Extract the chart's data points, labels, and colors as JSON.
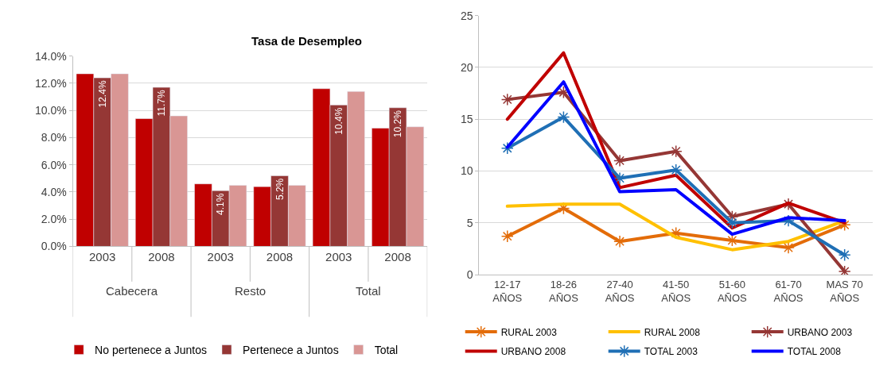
{
  "chart_data": [
    {
      "type": "bar",
      "title": "Tasa de Desempleo",
      "categories": [
        "2003",
        "2008",
        "2003",
        "2008",
        "2003",
        "2008"
      ],
      "annotations": [
        "Cabecera",
        "Resto",
        "Total"
      ],
      "series": [
        {
          "name": "No pertenece a Juntos",
          "color": "#c00000",
          "values": [
            12.7,
            9.4,
            4.6,
            4.4,
            11.6,
            8.7
          ]
        },
        {
          "name": "Pertenece a Juntos",
          "color": "#953735",
          "values": [
            12.4,
            11.7,
            4.1,
            5.2,
            10.4,
            10.2
          ],
          "value_labels": [
            "12.4%",
            "11.7%",
            "4.1%",
            "5.2%",
            "10.4%",
            "10.2%"
          ]
        },
        {
          "name": "Total",
          "color": "#d99694",
          "values": [
            12.7,
            9.6,
            4.5,
            4.5,
            11.4,
            8.8
          ]
        }
      ],
      "ylim": [
        0,
        14
      ],
      "yticks": [
        {
          "value": 0,
          "label": "0.0%"
        },
        {
          "value": 2,
          "label": "2.0%"
        },
        {
          "value": 4,
          "label": "4.0%"
        },
        {
          "value": 6,
          "label": "6.0%"
        },
        {
          "value": 8,
          "label": "8.0%"
        },
        {
          "value": 10,
          "label": "10.0%"
        },
        {
          "value": 12,
          "label": "12.0%"
        },
        {
          "value": 14,
          "label": "14.0%"
        }
      ],
      "grid": "y",
      "legend": "bottom"
    },
    {
      "type": "line",
      "categories": [
        "12-17\nAÑOS",
        "18-26\nAÑOS",
        "27-40\nAÑOS",
        "41-50\nAÑOS",
        "51-60\nAÑOS",
        "61-70\nAÑOS",
        "MAS 70\nAÑOS"
      ],
      "series": [
        {
          "name": "RURAL 2003",
          "color": "#e36c09",
          "marker": "cross",
          "values": [
            3.7,
            6.4,
            3.2,
            4.0,
            3.3,
            2.6,
            4.8
          ]
        },
        {
          "name": "RURAL 2008",
          "color": "#ffc000",
          "marker": "none",
          "values": [
            6.6,
            6.8,
            6.8,
            3.6,
            2.4,
            3.2,
            5.2
          ]
        },
        {
          "name": "URBANO 2003",
          "color": "#953735",
          "marker": "cross",
          "values": [
            16.9,
            17.6,
            11.0,
            11.9,
            5.6,
            6.8,
            0.3
          ]
        },
        {
          "name": "URBANO 2008",
          "color": "#c00000",
          "marker": "none",
          "values": [
            15.0,
            21.4,
            8.4,
            9.6,
            4.5,
            6.9,
            5.0
          ]
        },
        {
          "name": "TOTAL 2003",
          "color": "#1f6fb5",
          "marker": "cross",
          "values": [
            12.2,
            15.2,
            9.3,
            10.1,
            5.0,
            5.2,
            1.9
          ]
        },
        {
          "name": "TOTAL 2008",
          "color": "#0000ff",
          "marker": "none",
          "values": [
            12.3,
            18.6,
            8.0,
            8.2,
            3.9,
            5.5,
            5.2
          ]
        }
      ],
      "ylim": [
        0,
        25
      ],
      "yticks": [
        0,
        5,
        10,
        15,
        20,
        25
      ],
      "grid": "y",
      "legend": "bottom"
    }
  ]
}
